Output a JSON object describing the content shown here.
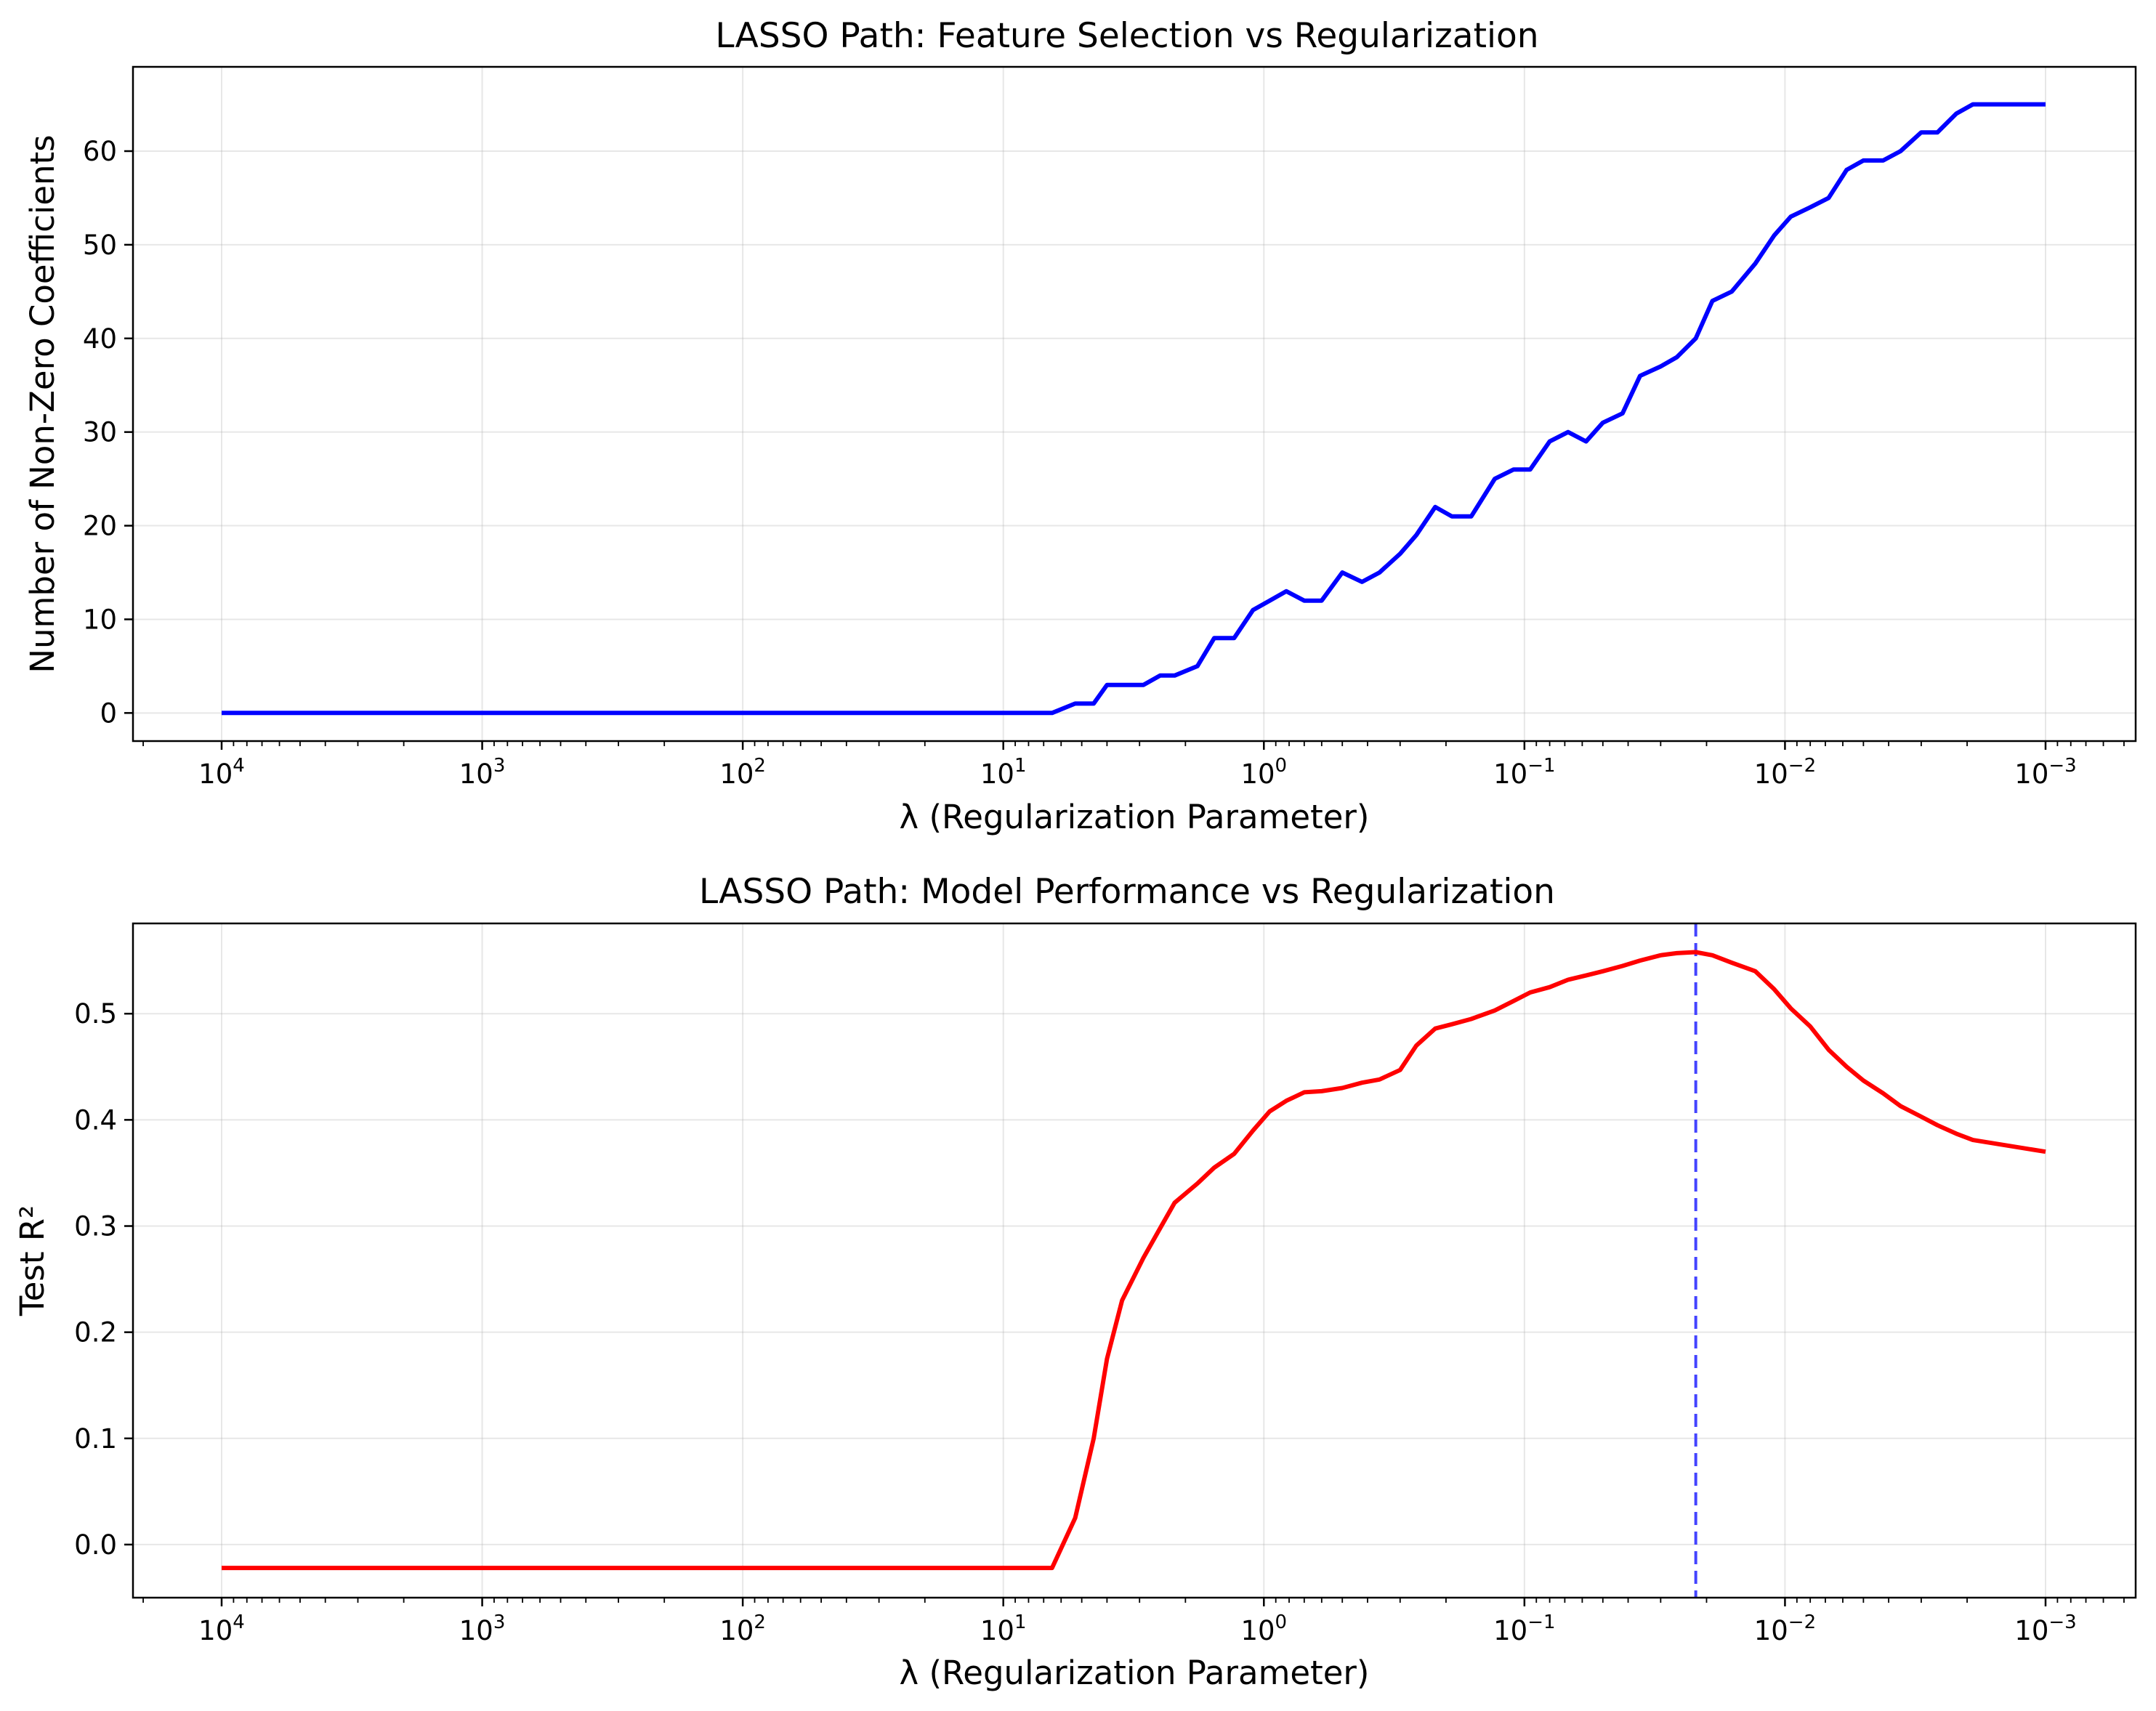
{
  "chart_data": [
    {
      "type": "line",
      "title": "LASSO Path: Feature Selection vs Regularization",
      "xlabel": "λ (Regularization Parameter)",
      "ylabel": "Number of Non-Zero Coefficients",
      "xscale": "log",
      "x_reversed": true,
      "xlim": [
        10000,
        0.001
      ],
      "ylim": [
        -3,
        69
      ],
      "grid": true,
      "xticks": [
        {
          "base": "10",
          "exp": "4"
        },
        {
          "base": "10",
          "exp": "3"
        },
        {
          "base": "10",
          "exp": "2"
        },
        {
          "base": "10",
          "exp": "1"
        },
        {
          "base": "10",
          "exp": "0"
        },
        {
          "base": "10",
          "exp": "−1"
        },
        {
          "base": "10",
          "exp": "−2"
        },
        {
          "base": "10",
          "exp": "−3"
        }
      ],
      "yticks": [
        "0",
        "10",
        "20",
        "30",
        "40",
        "50",
        "60"
      ],
      "color": "#0000ff",
      "series": [
        {
          "x": [
            10000,
            6.5,
            5.3,
            4.5,
            4.0,
            3.5,
            2.9,
            2.5,
            2.2,
            1.8,
            1.55,
            1.3,
            1.1,
            0.95,
            0.82,
            0.7,
            0.6,
            0.5,
            0.42,
            0.36,
            0.3,
            0.26,
            0.22,
            0.19,
            0.16,
            0.13,
            0.11,
            0.095,
            0.08,
            0.068,
            0.058,
            0.05,
            0.042,
            0.036,
            0.03,
            0.026,
            0.022,
            0.019,
            0.016,
            0.013,
            0.011,
            0.0095,
            0.008,
            0.0068,
            0.0058,
            0.005,
            0.0042,
            0.0036,
            0.003,
            0.0026,
            0.0022,
            0.0019,
            0.001
          ],
          "values": [
            0,
            0,
            1,
            1,
            3,
            3,
            3,
            4,
            4,
            5,
            8,
            8,
            11,
            12,
            13,
            12,
            12,
            15,
            14,
            15,
            17,
            19,
            22,
            21,
            21,
            25,
            26,
            26,
            29,
            30,
            29,
            31,
            32,
            36,
            37,
            38,
            40,
            44,
            45,
            48,
            51,
            53,
            54,
            55,
            58,
            59,
            59,
            60,
            62,
            62,
            64,
            65,
            65
          ]
        }
      ]
    },
    {
      "type": "line",
      "title": "LASSO Path: Model Performance vs Regularization",
      "xlabel": "λ (Regularization Parameter)",
      "ylabel": "Test R²",
      "xscale": "log",
      "x_reversed": true,
      "xlim": [
        10000,
        0.001
      ],
      "ylim": [
        -0.05,
        0.585
      ],
      "grid": true,
      "xticks": [
        {
          "base": "10",
          "exp": "4"
        },
        {
          "base": "10",
          "exp": "3"
        },
        {
          "base": "10",
          "exp": "2"
        },
        {
          "base": "10",
          "exp": "1"
        },
        {
          "base": "10",
          "exp": "0"
        },
        {
          "base": "10",
          "exp": "−1"
        },
        {
          "base": "10",
          "exp": "−2"
        },
        {
          "base": "10",
          "exp": "−3"
        }
      ],
      "yticks": [
        "0.0",
        "0.1",
        "0.2",
        "0.3",
        "0.4",
        "0.5"
      ],
      "color": "#ff0000",
      "vline": {
        "x": 0.022,
        "color": "#4444ff",
        "style": "dashed"
      },
      "series": [
        {
          "x": [
            10000,
            6.5,
            5.3,
            4.5,
            4.0,
            3.5,
            2.9,
            2.5,
            2.2,
            1.8,
            1.55,
            1.3,
            1.1,
            0.95,
            0.82,
            0.7,
            0.6,
            0.5,
            0.42,
            0.36,
            0.3,
            0.26,
            0.22,
            0.19,
            0.16,
            0.13,
            0.11,
            0.095,
            0.08,
            0.068,
            0.058,
            0.05,
            0.042,
            0.036,
            0.03,
            0.026,
            0.022,
            0.019,
            0.016,
            0.013,
            0.011,
            0.0095,
            0.008,
            0.0068,
            0.0058,
            0.005,
            0.0042,
            0.0036,
            0.003,
            0.0026,
            0.0022,
            0.0019,
            0.001
          ],
          "values": [
            -0.022,
            -0.022,
            0.025,
            0.1,
            0.175,
            0.23,
            0.27,
            0.298,
            0.322,
            0.34,
            0.355,
            0.368,
            0.39,
            0.408,
            0.418,
            0.426,
            0.427,
            0.43,
            0.435,
            0.438,
            0.447,
            0.47,
            0.486,
            0.49,
            0.495,
            0.503,
            0.512,
            0.52,
            0.525,
            0.532,
            0.536,
            0.54,
            0.545,
            0.55,
            0.555,
            0.557,
            0.558,
            0.555,
            0.548,
            0.54,
            0.523,
            0.505,
            0.488,
            0.466,
            0.45,
            0.437,
            0.425,
            0.413,
            0.403,
            0.395,
            0.387,
            0.381,
            0.37
          ]
        }
      ]
    }
  ]
}
